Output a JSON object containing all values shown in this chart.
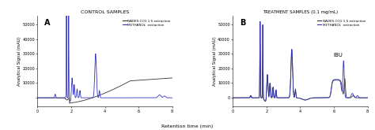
{
  "panel_A_title": "CONTROL SAMPLES",
  "panel_B_title": "TREATMENT SAMPLES (0.1 mg/mL)",
  "xlabel": "Retention time (min)",
  "ylabel": "Analytical Signal (mAU)",
  "xlim": [
    0,
    8
  ],
  "ylim_A": [
    -6000,
    56000
  ],
  "ylim_B": [
    -6000,
    56000
  ],
  "yticks": [
    0,
    10000,
    20000,
    30000,
    40000,
    50000
  ],
  "xticks": [
    0,
    2,
    4,
    6,
    8
  ],
  "label_nades": "NADES CCG 1:5 extraction",
  "label_methanol": "METHANOL  extraction",
  "color_nades": "#333333",
  "color_methanol": "#3333bb",
  "background": "#f0f0f0",
  "panel_A_label": "A",
  "panel_B_label": "B",
  "ibu_label": "IBU",
  "lw": 0.6
}
